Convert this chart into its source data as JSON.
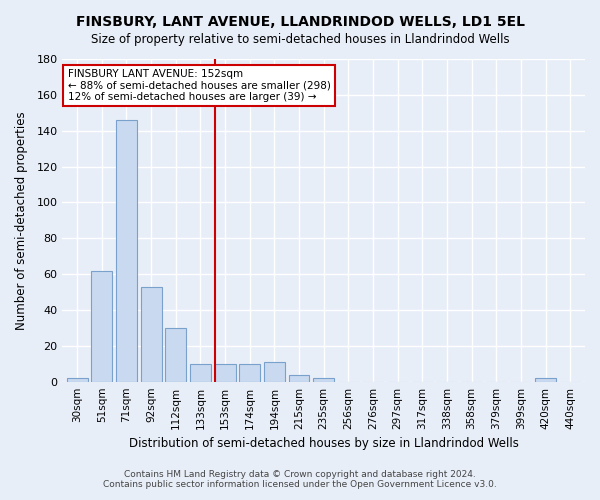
{
  "title": "FINSBURY, LANT AVENUE, LLANDRINDOD WELLS, LD1 5EL",
  "subtitle": "Size of property relative to semi-detached houses in Llandrindod Wells",
  "xlabel": "Distribution of semi-detached houses by size in Llandrindod Wells",
  "ylabel": "Number of semi-detached properties",
  "bar_labels": [
    "30sqm",
    "51sqm",
    "71sqm",
    "92sqm",
    "112sqm",
    "133sqm",
    "153sqm",
    "174sqm",
    "194sqm",
    "215sqm",
    "235sqm",
    "256sqm",
    "276sqm",
    "297sqm",
    "317sqm",
    "338sqm",
    "358sqm",
    "379sqm",
    "399sqm",
    "420sqm",
    "440sqm"
  ],
  "bar_values": [
    2,
    62,
    146,
    53,
    30,
    10,
    10,
    10,
    11,
    4,
    2,
    0,
    0,
    0,
    0,
    0,
    0,
    0,
    0,
    2,
    0
  ],
  "bar_color": "#c9d9f0",
  "bar_edge_color": "#7aa0cc",
  "property_label": "FINSBURY LANT AVENUE: 152sqm",
  "annotation_line1": "← 88% of semi-detached houses are smaller (298)",
  "annotation_line2": "12% of semi-detached houses are larger (39) →",
  "vline_x_index": 6,
  "vline_color": "#cc0000",
  "annotation_box_color": "#ffffff",
  "annotation_box_edge": "#cc0000",
  "background_color": "#e8eef8",
  "plot_background": "#e8eef8",
  "grid_color": "#ffffff",
  "footer_line1": "Contains HM Land Registry data © Crown copyright and database right 2024.",
  "footer_line2": "Contains public sector information licensed under the Open Government Licence v3.0.",
  "ylim": [
    0,
    180
  ],
  "yticks": [
    0,
    20,
    40,
    60,
    80,
    100,
    120,
    140,
    160,
    180
  ]
}
